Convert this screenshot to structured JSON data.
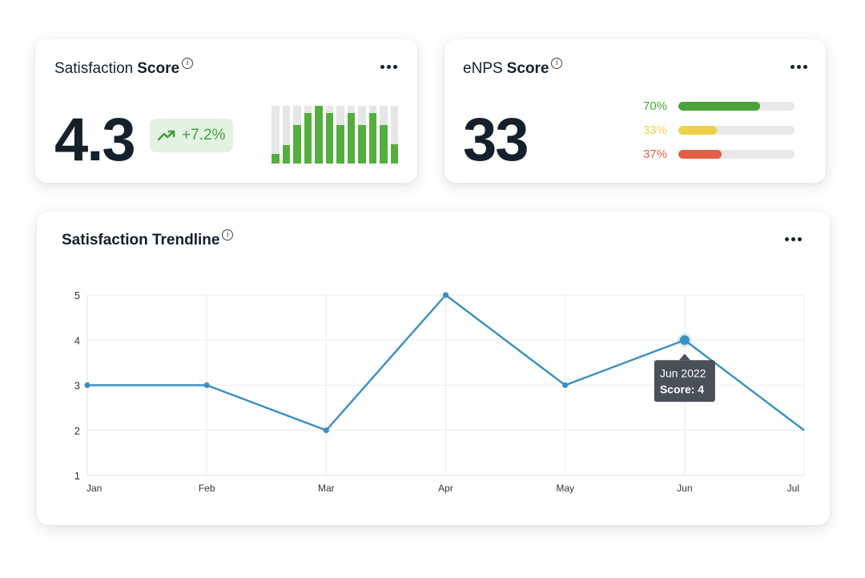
{
  "satisfaction_card": {
    "title_regular": "Satisfaction",
    "title_bold": "Score",
    "score": "4.3",
    "delta": "+7.2%",
    "trend_icon": "trending-up-icon",
    "info_icon": "info-icon",
    "more_icon": "more-horizontal-icon",
    "mini_bar_levels": [
      0.16,
      0.32,
      0.66,
      0.87,
      1.0,
      0.87,
      0.66,
      0.87,
      0.66,
      0.87,
      0.66,
      0.33
    ],
    "bar_color": "#54ae3e",
    "track_color": "#e6e6e6"
  },
  "enps_card": {
    "title_regular": "eNPS",
    "title_bold": "Score",
    "score": "33",
    "info_icon": "info-icon",
    "more_icon": "more-horizontal-icon",
    "rows": [
      {
        "label": "70%",
        "value": 0.7,
        "color": "#4aa23a"
      },
      {
        "label": "33%",
        "value": 0.33,
        "color": "#ecd24a"
      },
      {
        "label": "37%",
        "value": 0.37,
        "color": "#e45f48"
      }
    ]
  },
  "trend_card": {
    "title": "Satisfaction Trendline",
    "info_icon": "info-icon",
    "more_icon": "more-horizontal-icon",
    "tooltip": {
      "line1": "Jun 2022",
      "line2": "Score: 4"
    }
  },
  "chart_data": {
    "type": "line",
    "categories": [
      "Jan",
      "Feb",
      "Mar",
      "Apr",
      "May",
      "Jun",
      "Jul"
    ],
    "values": [
      3,
      3,
      2,
      5,
      3,
      4,
      2
    ],
    "yticks": [
      "1",
      "2",
      "3",
      "4",
      "5"
    ],
    "ylim": [
      1,
      5
    ],
    "grid": true,
    "line_color": "#3a8fc2",
    "highlighted_index": 5
  }
}
